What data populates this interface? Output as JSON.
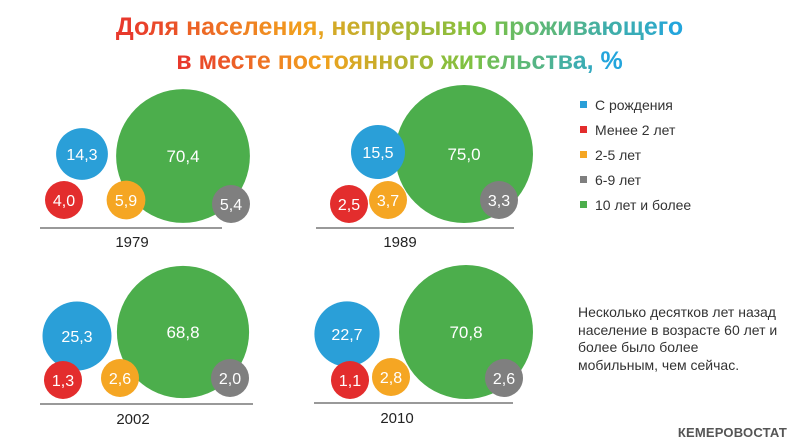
{
  "title": {
    "lines": [
      "Доля населения, непрерывно проживающего",
      "в месте постоянного жительства, %"
    ],
    "gradient": [
      "#e8392c",
      "#f2a11d",
      "#7dc242",
      "#23a5dc"
    ]
  },
  "legend": [
    {
      "label": "С рождения",
      "color": "#2a9fd8"
    },
    {
      "label": "Менее 2 лет",
      "color": "#e32d2d"
    },
    {
      "label": "2-5 лет",
      "color": "#f5a623"
    },
    {
      "label": "6-9 лет",
      "color": "#7f7f7f"
    },
    {
      "label": "10 лет и более",
      "color": "#4cae4c"
    }
  ],
  "note": "Несколько десятков лет назад население в возрасте 60 лет и более было более мобильным, чем сейчас.",
  "source": "КЕМЕРОВОСТАТ",
  "chart_data": [
    {
      "type": "bubble",
      "year": "1979",
      "series": [
        {
          "name": "С рождения",
          "value": 14.3,
          "label": "14,3"
        },
        {
          "name": "Менее 2 лет",
          "value": 4.0,
          "label": "4,0"
        },
        {
          "name": "2-5 лет",
          "value": 5.9,
          "label": "5,9"
        },
        {
          "name": "6-9 лет",
          "value": 5.4,
          "label": "5,4"
        },
        {
          "name": "10 лет и более",
          "value": 70.4,
          "label": "70,4"
        }
      ]
    },
    {
      "type": "bubble",
      "year": "1989",
      "series": [
        {
          "name": "С рождения",
          "value": 15.5,
          "label": "15,5"
        },
        {
          "name": "Менее 2 лет",
          "value": 2.5,
          "label": "2,5"
        },
        {
          "name": "2-5 лет",
          "value": 3.7,
          "label": "3,7"
        },
        {
          "name": "6-9 лет",
          "value": 3.3,
          "label": "3,3"
        },
        {
          "name": "10 лет и более",
          "value": 75.0,
          "label": "75,0"
        }
      ]
    },
    {
      "type": "bubble",
      "year": "2002",
      "series": [
        {
          "name": "С рождения",
          "value": 25.3,
          "label": "25,3"
        },
        {
          "name": "Менее 2 лет",
          "value": 1.3,
          "label": "1,3"
        },
        {
          "name": "2-5 лет",
          "value": 2.6,
          "label": "2,6"
        },
        {
          "name": "6-9 лет",
          "value": 2.0,
          "label": "2,0"
        },
        {
          "name": "10 лет и более",
          "value": 68.8,
          "label": "68,8"
        }
      ]
    },
    {
      "type": "bubble",
      "year": "2010",
      "series": [
        {
          "name": "С рождения",
          "value": 22.7,
          "label": "22,7"
        },
        {
          "name": "Менее 2 лет",
          "value": 1.1,
          "label": "1,1"
        },
        {
          "name": "2-5 лет",
          "value": 2.8,
          "label": "2,8"
        },
        {
          "name": "6-9 лет",
          "value": 2.6,
          "label": "2,6"
        },
        {
          "name": "10 лет и более",
          "value": 70.8,
          "label": "70,8"
        }
      ]
    }
  ]
}
